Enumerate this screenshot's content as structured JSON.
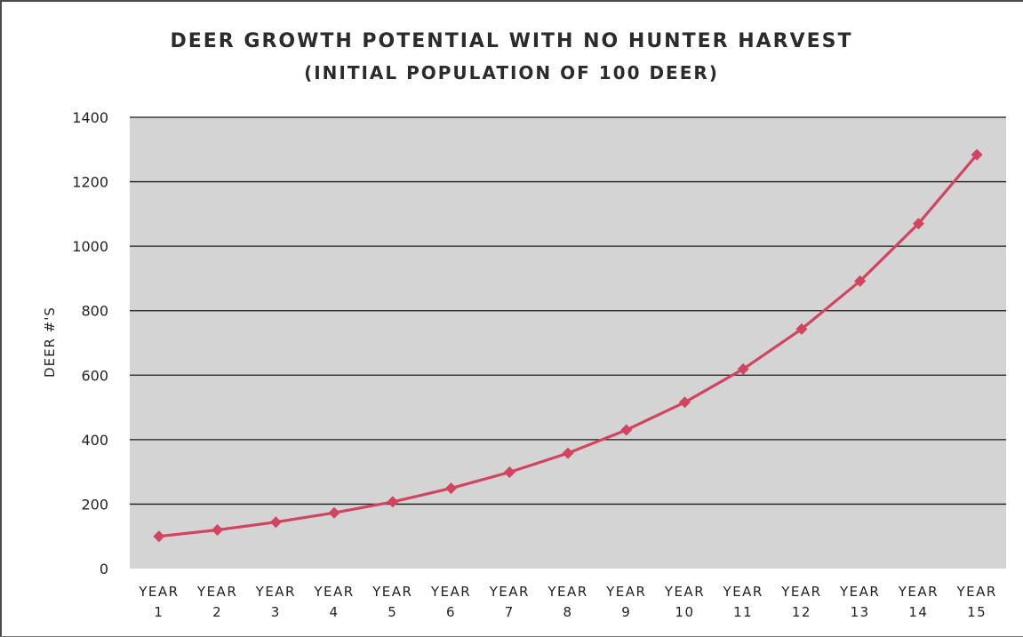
{
  "chart_data": {
    "type": "line",
    "title": "DEER GROWTH POTENTIAL WITH NO HUNTER HARVEST",
    "subtitle": "(INITIAL POPULATION OF 100 DEER)",
    "xlabel": "",
    "ylabel": "DEER #'S",
    "categories": [
      [
        "YEAR",
        "1"
      ],
      [
        "YEAR",
        "2"
      ],
      [
        "YEAR",
        "3"
      ],
      [
        "YEAR",
        "4"
      ],
      [
        "YEAR",
        "5"
      ],
      [
        "YEAR",
        "6"
      ],
      [
        "YEAR",
        "7"
      ],
      [
        "YEAR",
        "8"
      ],
      [
        "YEAR",
        "9"
      ],
      [
        "YEAR",
        "10"
      ],
      [
        "YEAR",
        "11"
      ],
      [
        "YEAR",
        "12"
      ],
      [
        "YEAR",
        "13"
      ],
      [
        "YEAR",
        "14"
      ],
      [
        "YEAR",
        "15"
      ]
    ],
    "series": [
      {
        "values": [
          100,
          120,
          144,
          173,
          207,
          249,
          299,
          358,
          430,
          516,
          619,
          743,
          892,
          1070,
          1284
        ],
        "color": "#d2445f",
        "marker": "diamond"
      }
    ],
    "ylim": [
      0,
      1400
    ],
    "yticks": [
      0,
      200,
      400,
      600,
      800,
      1000,
      1200,
      1400
    ],
    "grid": true,
    "legend": "none",
    "plot_background": "#d4d4d4",
    "gridline_color": "#1a1a1a"
  }
}
